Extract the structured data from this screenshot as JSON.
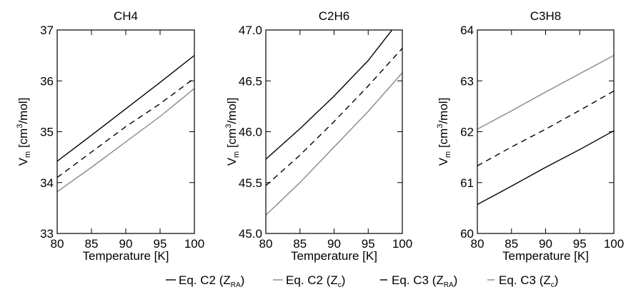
{
  "chart_data": [
    {
      "type": "line",
      "title": "CH4",
      "xlabel": "Temperature [K]",
      "ylabel": [
        "V",
        "m",
        " [cm",
        "3",
        "/mol]"
      ],
      "x": [
        80,
        85,
        90,
        95,
        100
      ],
      "xlim": [
        80,
        100
      ],
      "xticks": [
        80,
        85,
        90,
        95,
        100
      ],
      "ylim": [
        33,
        37
      ],
      "yticks": [
        33,
        34,
        35,
        36,
        37
      ],
      "series": [
        {
          "color": "#000000",
          "dash": "none",
          "values": [
            34.42,
            34.93,
            35.45,
            35.97,
            36.5
          ]
        },
        {
          "color": "#000000",
          "dash": "8 6",
          "values": [
            34.1,
            34.6,
            35.1,
            35.55,
            36.05
          ]
        },
        {
          "color": "#888888",
          "dash": "none",
          "values": [
            33.82,
            34.3,
            34.8,
            35.3,
            35.85
          ]
        }
      ]
    },
    {
      "type": "line",
      "title": "C2H6",
      "xlabel": "Temperature [K]",
      "ylabel": [
        "V",
        "m",
        " [cm",
        "3",
        "/mol]"
      ],
      "x": [
        80,
        85,
        90,
        95,
        100
      ],
      "xlim": [
        80,
        100
      ],
      "xticks": [
        80,
        85,
        90,
        95,
        100
      ],
      "ylim": [
        45,
        47
      ],
      "yticks": [
        {
          "value": 45,
          "label": "45.0"
        },
        45.5,
        {
          "value": 46,
          "label": "46.0"
        },
        46.5,
        {
          "value": 47,
          "label": "47.0"
        }
      ],
      "series": [
        {
          "color": "#000000",
          "dash": "none",
          "values": [
            45.73,
            46.03,
            46.35,
            46.7,
            47.13
          ]
        },
        {
          "color": "#000000",
          "dash": "8 6",
          "values": [
            45.47,
            45.77,
            46.1,
            46.45,
            46.82
          ]
        },
        {
          "color": "#888888",
          "dash": "none",
          "values": [
            45.18,
            45.5,
            45.85,
            46.2,
            46.58
          ]
        }
      ]
    },
    {
      "type": "line",
      "title": "C3H8",
      "xlabel": "Temperature [K]",
      "ylabel": [
        "V",
        "m",
        " [cm",
        "3",
        "/mol]"
      ],
      "x": [
        80,
        85,
        90,
        95,
        100
      ],
      "xlim": [
        80,
        100
      ],
      "xticks": [
        80,
        85,
        90,
        95,
        100
      ],
      "ylim": [
        60,
        64
      ],
      "yticks": [
        60,
        61,
        62,
        63,
        64
      ],
      "series": [
        {
          "color": "#000000",
          "dash": "none",
          "values": [
            60.57,
            60.93,
            61.3,
            61.65,
            62.02
          ]
        },
        {
          "color": "#000000",
          "dash": "8 6",
          "values": [
            61.33,
            61.7,
            62.05,
            62.42,
            62.8
          ]
        },
        {
          "color": "#888888",
          "dash": "none",
          "values": [
            62.05,
            62.41,
            62.78,
            63.14,
            63.5
          ]
        }
      ]
    }
  ],
  "legend": [
    {
      "parts": [
        "Eq. C2 (Z",
        "RA",
        ")"
      ],
      "color": "#000000",
      "dash": "none"
    },
    {
      "parts": [
        "Eq. C2 (Z",
        "c",
        ")"
      ],
      "color": "#888888",
      "dash": "none"
    },
    {
      "parts": [
        "Eq. C3 (Z",
        "RA",
        ")"
      ],
      "color": "#000000",
      "dash": "8 6"
    },
    {
      "parts": [
        "Eq. C3 (Z",
        "c",
        ")"
      ],
      "color": "#888888",
      "dash": "8 6"
    }
  ]
}
